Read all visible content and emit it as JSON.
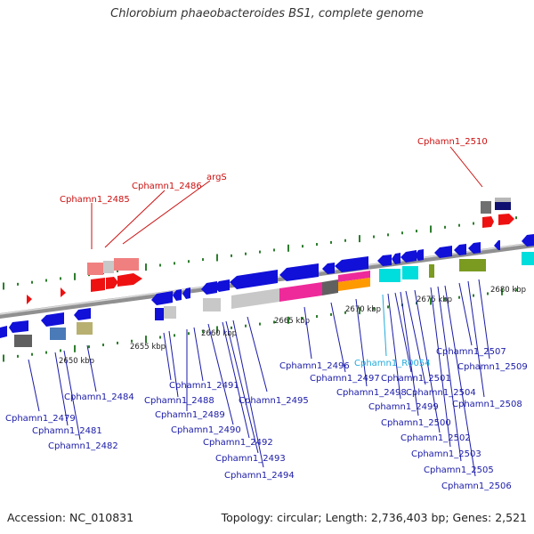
{
  "title": "Chlorobium phaeobacteroides BS1, complete genome",
  "footer": {
    "accession": "Accession: NC_010831",
    "topology": "Topology: circular; Length: 2,736,403 bp; Genes: 2,521"
  },
  "colors": {
    "blue_gene": "#1010d8",
    "blue_label": "#1a1aa8",
    "red_label": "#cc1010",
    "cyan_label": "#22aadd",
    "tick_green": "#2e7d2e",
    "backbone": "#888888"
  },
  "scale_ticks": [
    "2650 kbp",
    "2655 kbp",
    "2660 kbp",
    "2665 kbp",
    "2670 kbp",
    "2675 kbp",
    "2680 kbp"
  ],
  "labels_upper": [
    "Cphamn1_2485",
    "Cphamn1_2486",
    "argS",
    "Cphamn1_2510"
  ],
  "labels_lower": [
    "Cphamn1_2479",
    "Cphamn1_2481",
    "Cphamn1_2482",
    "Cphamn1_2484",
    "Cphamn1_2488",
    "Cphamn1_2489",
    "Cphamn1_2490",
    "Cphamn1_2491",
    "Cphamn1_2492",
    "Cphamn1_2493",
    "Cphamn1_2494",
    "Cphamn1_2495",
    "Cphamn1_2496",
    "Cphamn1_2497",
    "Cphamn1_2498",
    "Cphamn1_2499",
    "Cphamn1_2500",
    "Cphamn1_2501",
    "Cphamn1_R0054",
    "Cphamn1_2502",
    "Cphamn1_2503",
    "Cphamn1_2504",
    "Cphamn1_2505",
    "Cphamn1_2506",
    "Cphamn1_2507",
    "Cphamn1_2508",
    "Cphamn1_2509"
  ]
}
